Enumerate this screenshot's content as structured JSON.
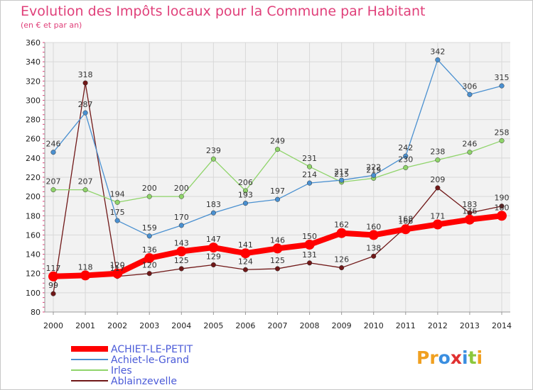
{
  "chart_data": {
    "type": "line",
    "title": "Evolution des Impôts locaux pour la Commune par Habitant",
    "subtitle": "(en € et par an)",
    "x": [
      "2000",
      "2001",
      "2002",
      "2003",
      "2004",
      "2005",
      "2006",
      "2007",
      "2008",
      "2009",
      "2010",
      "2011",
      "2012",
      "2013",
      "2014"
    ],
    "yticks": [
      80,
      100,
      120,
      140,
      160,
      180,
      200,
      220,
      240,
      260,
      280,
      300,
      320,
      340,
      360
    ],
    "ylim": [
      80,
      360
    ],
    "grid": true,
    "legend_position": "bottom-left",
    "series": [
      {
        "name": "ACHIET-LE-PETIT",
        "color": "#ff0000",
        "values": [
          117,
          118,
          120,
          136,
          143,
          147,
          141,
          146,
          150,
          162,
          160,
          166,
          171,
          176,
          180
        ]
      },
      {
        "name": "Achiet-le-Grand",
        "color": "#4a90d0",
        "values": [
          246,
          287,
          175,
          159,
          170,
          183,
          193,
          197,
          214,
          217,
          222,
          242,
          342,
          306,
          315
        ]
      },
      {
        "name": "Irles",
        "color": "#8fd46a",
        "values": [
          207,
          207,
          194,
          200,
          200,
          239,
          206,
          249,
          231,
          215,
          219,
          230,
          238,
          246,
          258
        ]
      },
      {
        "name": "Ablainzevelle",
        "color": "#701818",
        "values": [
          99,
          318,
          117,
          120,
          125,
          129,
          124,
          125,
          131,
          126,
          138,
          168,
          209,
          183,
          190
        ]
      }
    ]
  },
  "logo": {
    "letters": [
      "P",
      "r",
      "o",
      "x",
      "i",
      "t",
      "i"
    ],
    "colors": [
      "#f0a020",
      "#f0a020",
      "#3a8ee0",
      "#e03030",
      "#3a8ee0",
      "#8cc83c",
      "#f0a020"
    ]
  }
}
